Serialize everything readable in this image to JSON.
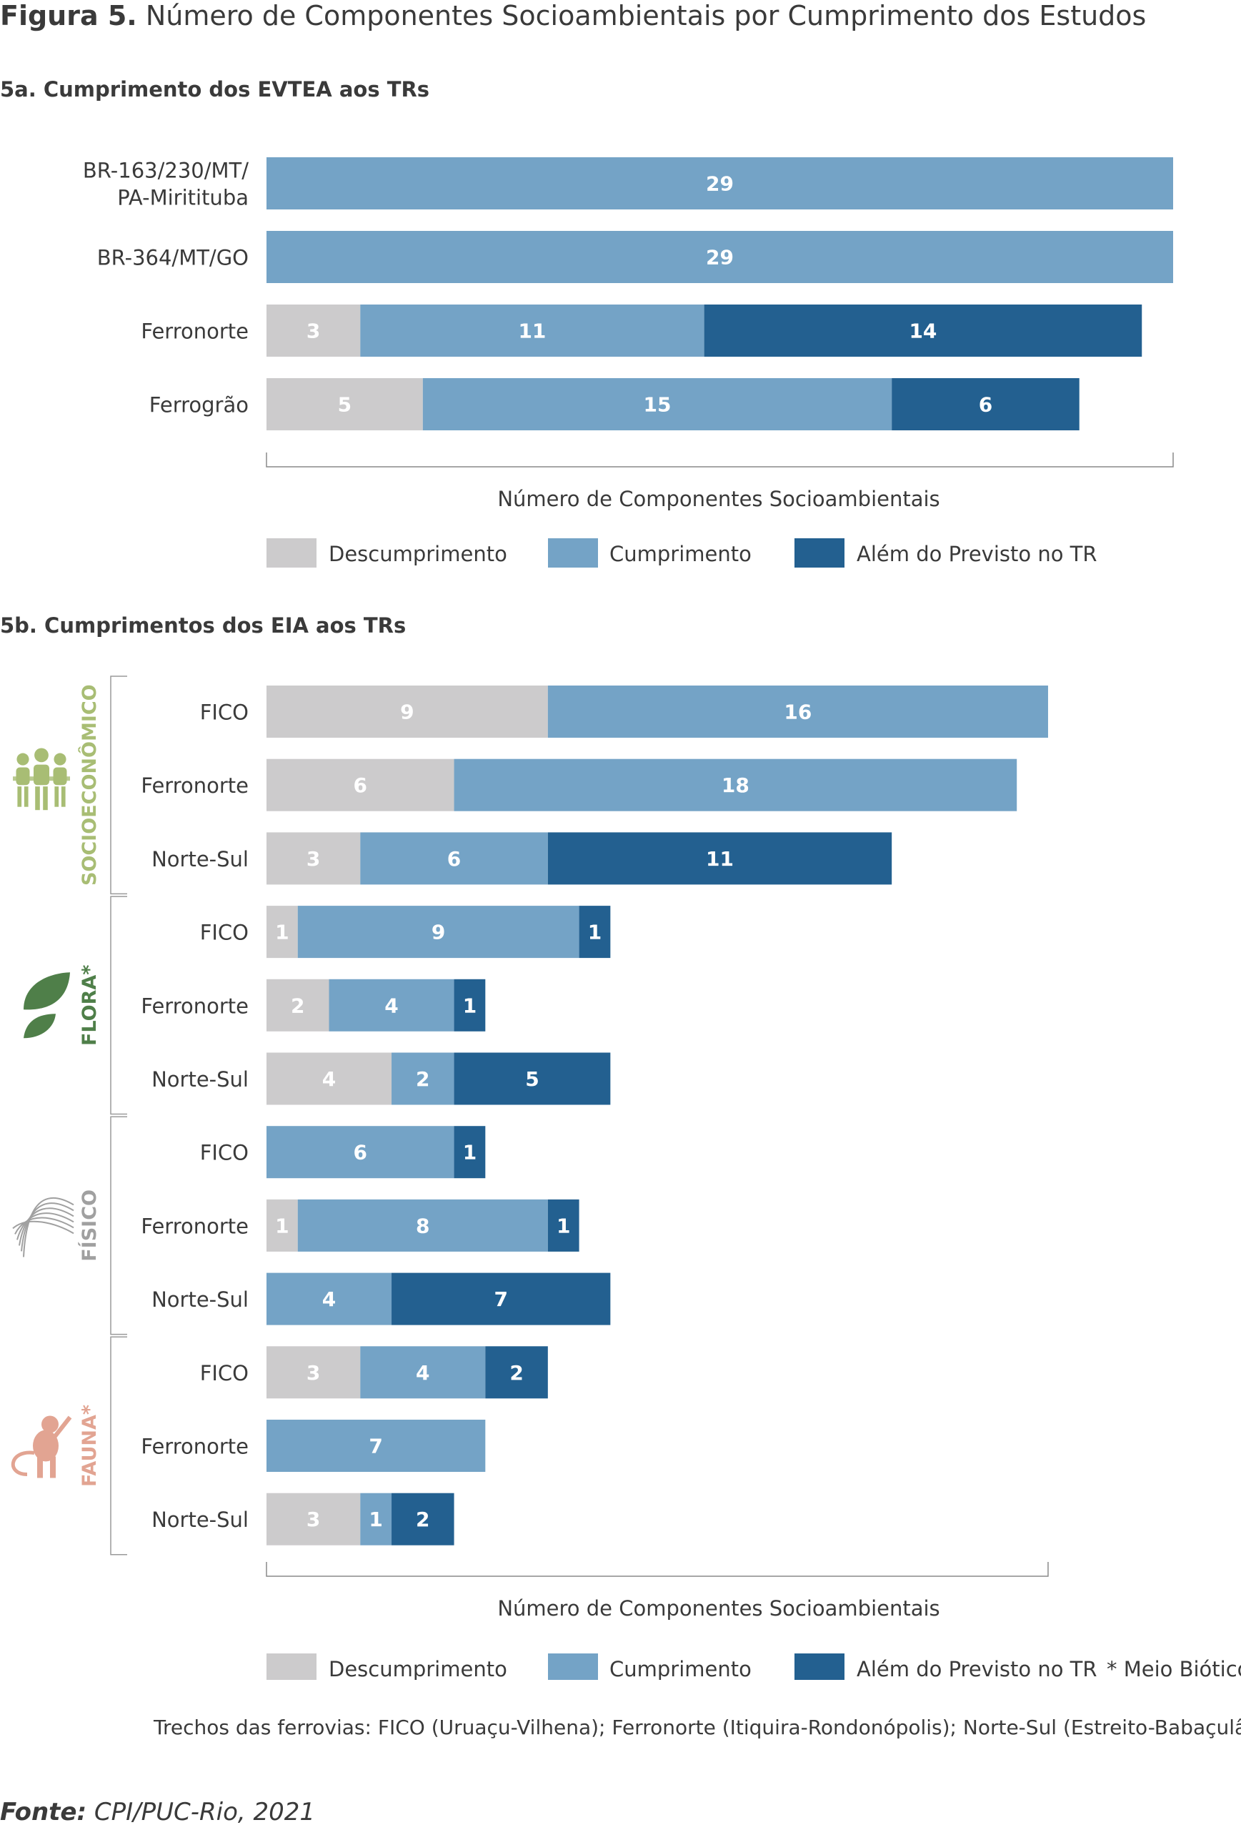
{
  "figure": {
    "title_bold": "Figura 5.",
    "title_rest": " Número de Componentes Socioambientais por Cumprimento dos Estudos",
    "note": "Trechos das ferrovias: FICO (Uruaçu-Vilhena); Ferronorte (Itiquira-Rondonópolis); Norte-Sul (Estreito-Babaçulândia)",
    "source_bold": "Fonte:",
    "source_rest": " CPI/PUC-Rio, 2021"
  },
  "colors": {
    "descumprimento": "#cccbcc",
    "cumprimento": "#74a3c6",
    "alem": "#236090",
    "socioeconomico": "#a8bd74",
    "flora": "#4f7f49",
    "fisico": "#a0a0a0",
    "fauna": "#e2a492"
  },
  "legend": {
    "descumprimento": "Descumprimento",
    "cumprimento": "Cumprimento",
    "alem": "Além do Previsto no TR",
    "biotico_note": "* Meio Biótico"
  },
  "chart_data": [
    {
      "type": "bar",
      "orientation": "horizontal",
      "stacked": true,
      "title": "5a. Cumprimento dos EVTEA aos TRs",
      "xlabel": "Número de Componentes Socioambientais",
      "xlim": [
        0,
        29
      ],
      "categories": [
        "BR-163/230/MT/ PA-Miritituba",
        "BR-364/MT/GO",
        "Ferronorte",
        "Ferrogrão"
      ],
      "category_lines": [
        [
          "BR-163/230/MT/",
          "PA-Miritituba"
        ],
        [
          "BR-364/MT/GO"
        ],
        [
          "Ferronorte"
        ],
        [
          "Ferrogrão"
        ]
      ],
      "series": [
        {
          "name": "Descumprimento",
          "key": "descumprimento",
          "values": [
            0,
            0,
            3,
            5
          ]
        },
        {
          "name": "Cumprimento",
          "key": "cumprimento",
          "values": [
            29,
            29,
            11,
            15
          ]
        },
        {
          "name": "Além do Previsto no TR",
          "key": "alem",
          "values": [
            0,
            0,
            14,
            6
          ]
        }
      ],
      "legend_position": "bottom"
    },
    {
      "type": "bar",
      "orientation": "horizontal",
      "stacked": true,
      "title": "5b. Cumprimentos dos EIA aos TRs",
      "xlabel": "Número de Componentes Socioambientais",
      "xlim": [
        0,
        25
      ],
      "groups": [
        {
          "label": "SOCIOECONÔMICO",
          "color_key": "socioeconomico",
          "icon": "people-icon",
          "categories": [
            "FICO",
            "Ferronorte",
            "Norte-Sul"
          ],
          "descumprimento": [
            9,
            6,
            3
          ],
          "cumprimento": [
            16,
            18,
            6
          ],
          "alem": [
            0,
            0,
            11
          ]
        },
        {
          "label": "FLORA*",
          "color_key": "flora",
          "icon": "leaf-icon",
          "categories": [
            "FICO",
            "Ferronorte",
            "Norte-Sul"
          ],
          "descumprimento": [
            1,
            2,
            4
          ],
          "cumprimento": [
            9,
            4,
            2
          ],
          "alem": [
            1,
            1,
            5
          ]
        },
        {
          "label": "FÍSICO",
          "color_key": "fisico",
          "icon": "terrain-lines-icon",
          "categories": [
            "FICO",
            "Ferronorte",
            "Norte-Sul"
          ],
          "descumprimento": [
            0,
            1,
            0
          ],
          "cumprimento": [
            6,
            8,
            4
          ],
          "alem": [
            1,
            1,
            7
          ]
        },
        {
          "label": "FAUNA*",
          "color_key": "fauna",
          "icon": "monkey-icon",
          "categories": [
            "FICO",
            "Ferronorte",
            "Norte-Sul"
          ],
          "descumprimento": [
            3,
            0,
            3
          ],
          "cumprimento": [
            4,
            7,
            1
          ],
          "alem": [
            2,
            0,
            2
          ]
        }
      ],
      "legend_position": "bottom"
    }
  ]
}
